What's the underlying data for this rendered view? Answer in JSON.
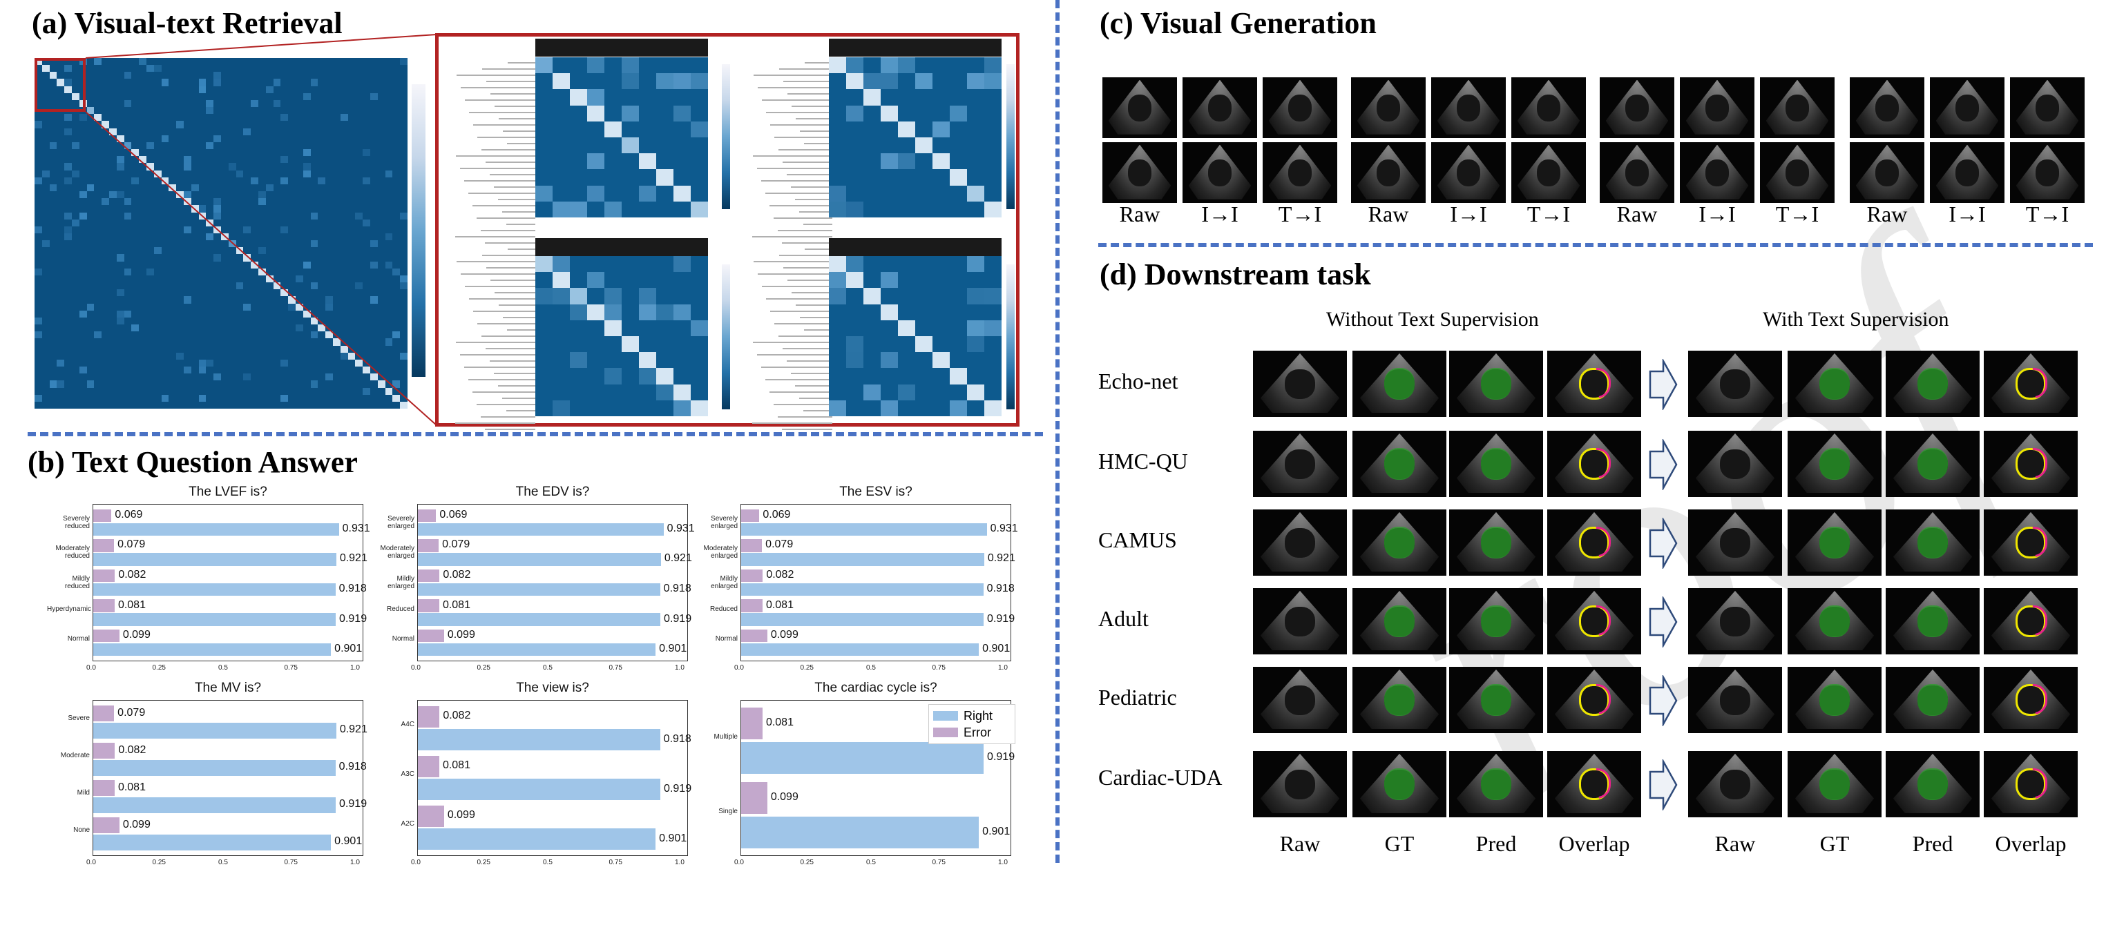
{
  "sections": {
    "a": "(a) Visual-text Retrieval",
    "b": "(b) Text Question Answer",
    "c": "(c) Visual Generation",
    "d": "(d) Downstream task"
  },
  "watermark": "roof",
  "visual_generation": {
    "groups": [
      {
        "labels": [
          "Raw",
          "I→I",
          "T→I"
        ]
      },
      {
        "labels": [
          "Raw",
          "I→I",
          "T→I"
        ]
      },
      {
        "labels": [
          "Raw",
          "I→I",
          "T→I"
        ]
      },
      {
        "labels": [
          "Raw",
          "I→I",
          "T→I"
        ]
      }
    ]
  },
  "downstream": {
    "left_header": "Without Text Supervision",
    "right_header": "With Text Supervision",
    "rows": [
      "Echo-net",
      "HMC-QU",
      "CAMUS",
      "Adult",
      "Pediatric",
      "Cardiac-UDA"
    ],
    "left_cols": [
      "Raw",
      "GT",
      "Pred",
      "Overlap"
    ],
    "right_cols": [
      "Raw",
      "GT",
      "Pred",
      "Overlap"
    ]
  },
  "colors": {
    "right": "#9fc5e8",
    "error": "#c3a8cc",
    "divider": "#4a72c4",
    "zoom_frame": "#b22222",
    "heatmap_dark": "#0b4f80"
  },
  "chart_data": [
    {
      "type": "bar",
      "title": "The LVEF is?",
      "categories": [
        "Severely reduced",
        "Moderately reduced",
        "Mildly reduced",
        "Hyperdynamic",
        "Normal"
      ],
      "series": [
        {
          "name": "Right",
          "values": [
            0.931,
            0.921,
            0.918,
            0.919,
            0.901
          ]
        },
        {
          "name": "Error",
          "values": [
            0.069,
            0.079,
            0.082,
            0.081,
            0.099
          ]
        }
      ],
      "xlim": [
        0,
        1.0
      ],
      "xticks": [
        "0.0",
        "0.25",
        "0.5",
        "0.75",
        "1.0"
      ],
      "orientation": "horizontal"
    },
    {
      "type": "bar",
      "title": "The EDV is?",
      "categories": [
        "Severely enlarged",
        "Moderately enlarged",
        "Mildly enlarged",
        "Reduced",
        "Normal"
      ],
      "series": [
        {
          "name": "Right",
          "values": [
            0.931,
            0.921,
            0.918,
            0.919,
            0.901
          ]
        },
        {
          "name": "Error",
          "values": [
            0.069,
            0.079,
            0.082,
            0.081,
            0.099
          ]
        }
      ],
      "xlim": [
        0,
        1.0
      ],
      "xticks": [
        "0.0",
        "0.25",
        "0.5",
        "0.75",
        "1.0"
      ],
      "orientation": "horizontal"
    },
    {
      "type": "bar",
      "title": "The ESV is?",
      "categories": [
        "Severely enlarged",
        "Moderately enlarged",
        "Mildly enlarged",
        "Reduced",
        "Normal"
      ],
      "series": [
        {
          "name": "Right",
          "values": [
            0.931,
            0.921,
            0.918,
            0.919,
            0.901
          ]
        },
        {
          "name": "Error",
          "values": [
            0.069,
            0.079,
            0.082,
            0.081,
            0.099
          ]
        }
      ],
      "xlim": [
        0,
        1.0
      ],
      "xticks": [
        "0.0",
        "0.25",
        "0.5",
        "0.75",
        "1.0"
      ],
      "orientation": "horizontal"
    },
    {
      "type": "bar",
      "title": "The MV is?",
      "categories": [
        "Severe",
        "Moderate",
        "Mild",
        "None"
      ],
      "series": [
        {
          "name": "Right",
          "values": [
            0.921,
            0.918,
            0.919,
            0.901
          ]
        },
        {
          "name": "Error",
          "values": [
            0.079,
            0.082,
            0.081,
            0.099
          ]
        }
      ],
      "xlim": [
        0,
        1.0
      ],
      "xticks": [
        "0.0",
        "0.25",
        "0.5",
        "0.75",
        "1.0"
      ],
      "orientation": "horizontal"
    },
    {
      "type": "bar",
      "title": "The view is?",
      "categories": [
        "A4C",
        "A3C",
        "A2C"
      ],
      "series": [
        {
          "name": "Right",
          "values": [
            0.918,
            0.919,
            0.901
          ]
        },
        {
          "name": "Error",
          "values": [
            0.082,
            0.081,
            0.099
          ]
        }
      ],
      "xlim": [
        0,
        1.0
      ],
      "xticks": [
        "0.0",
        "0.25",
        "0.5",
        "0.75",
        "1.0"
      ],
      "orientation": "horizontal"
    },
    {
      "type": "bar",
      "title": "The cardiac cycle is?",
      "categories": [
        "Multiple",
        "Single"
      ],
      "series": [
        {
          "name": "Right",
          "values": [
            0.919,
            0.901
          ]
        },
        {
          "name": "Error",
          "values": [
            0.081,
            0.099
          ]
        }
      ],
      "xlim": [
        0,
        1.0
      ],
      "xticks": [
        "0.0",
        "0.25",
        "0.5",
        "0.75",
        "1.0"
      ],
      "orientation": "horizontal",
      "legend": {
        "position": "top-right",
        "entries": [
          "Right",
          "Error"
        ]
      }
    }
  ]
}
